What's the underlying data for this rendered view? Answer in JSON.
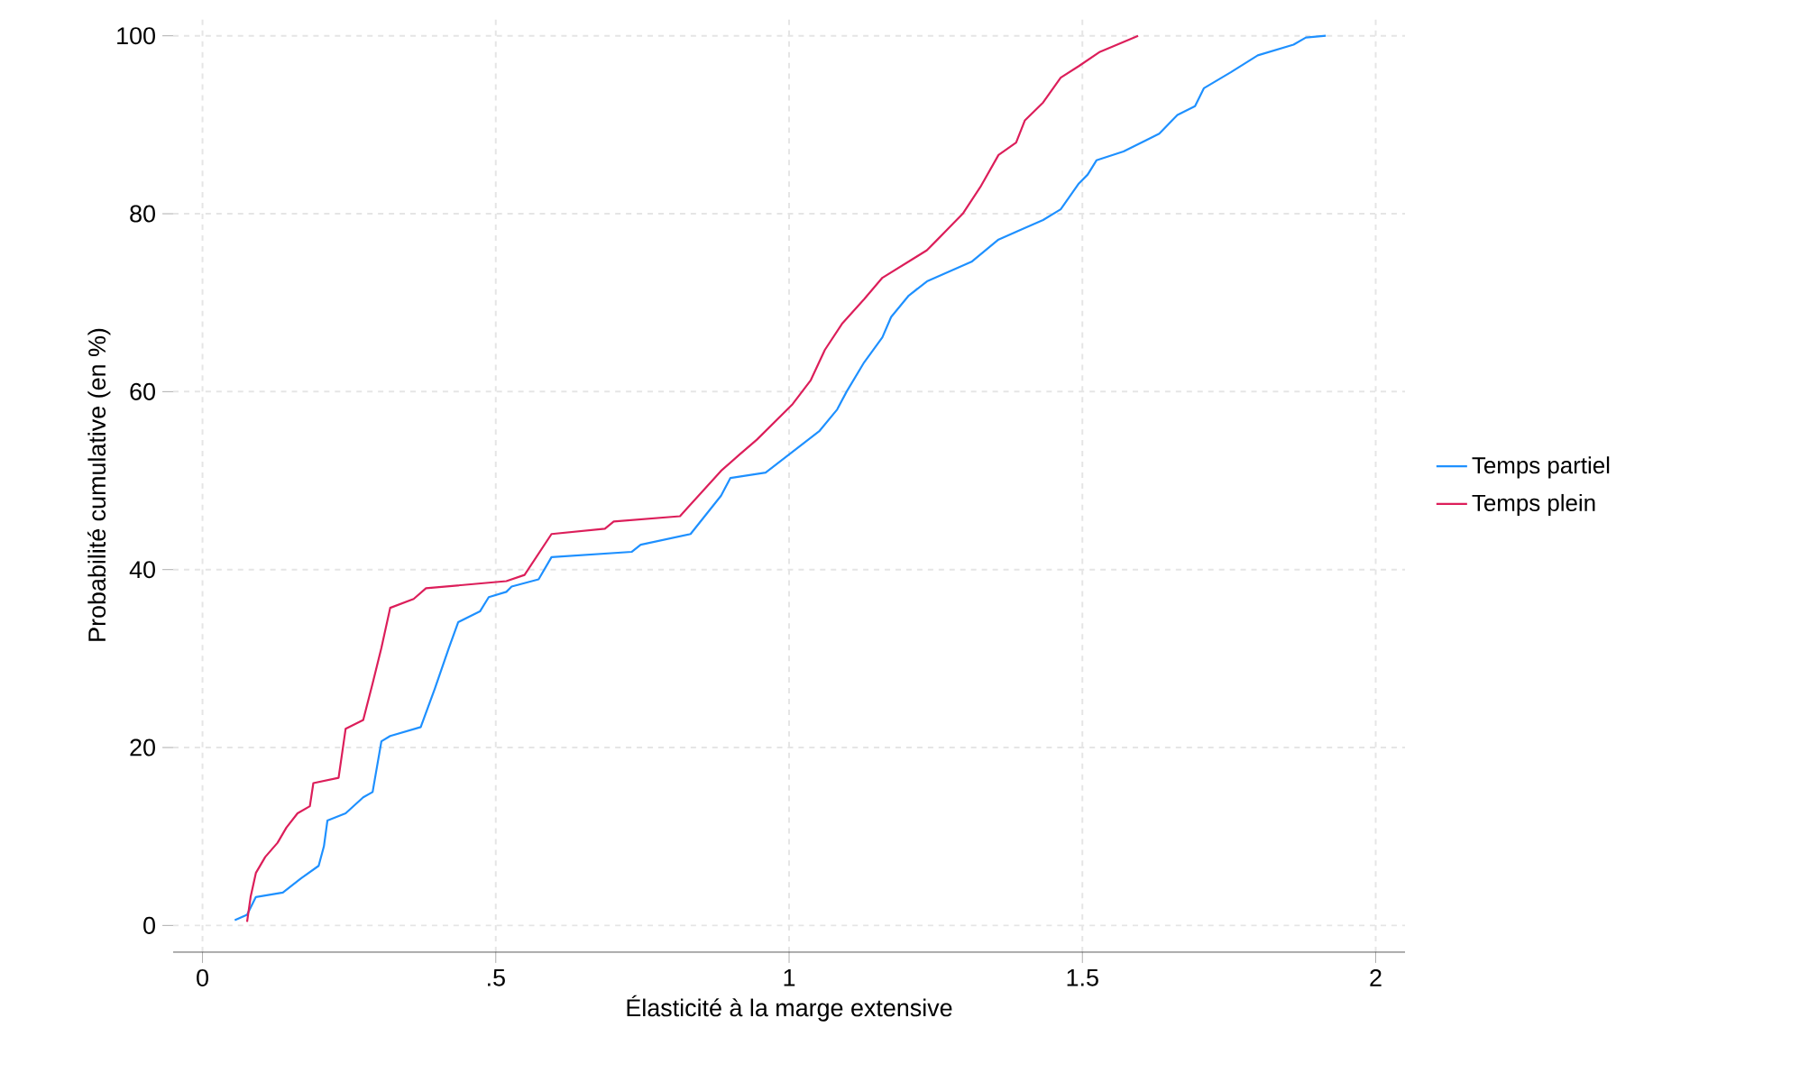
{
  "chart_data": {
    "type": "line",
    "xlabel": "Élasticité à la marge extensive",
    "ylabel": "Probabilité cumulative (en %)",
    "xlim": [
      -0.05,
      2.05
    ],
    "ylim": [
      -3,
      102
    ],
    "xticks": [
      0,
      {
        "value": 0.5,
        "label": ".5"
      },
      1,
      {
        "value": 1.5,
        "label": "1.5"
      },
      2
    ],
    "yticks": [
      0,
      20,
      40,
      60,
      80,
      100
    ],
    "grid": true,
    "legend": "right",
    "line_style": "solid",
    "marker": "none",
    "series": [
      {
        "name": "Temps partiel",
        "color": "#1e90ff",
        "x": [
          0.055,
          0.076,
          0.091,
          0.137,
          0.168,
          0.198,
          0.207,
          0.213,
          0.244,
          0.274,
          0.29,
          0.305,
          0.32,
          0.372,
          0.396,
          0.42,
          0.436,
          0.473,
          0.488,
          0.518,
          0.527,
          0.573,
          0.595,
          0.732,
          0.747,
          0.832,
          0.884,
          0.9,
          0.96,
          1.052,
          1.082,
          1.098,
          1.128,
          1.159,
          1.174,
          1.204,
          1.235,
          1.311,
          1.357,
          1.433,
          1.463,
          1.494,
          1.509,
          1.524,
          1.57,
          1.631,
          1.662,
          1.692,
          1.707,
          1.753,
          1.799,
          1.86,
          1.881,
          1.915
        ],
        "values": [
          0.6,
          1.2,
          3.2,
          3.7,
          5.3,
          6.7,
          8.9,
          11.8,
          12.6,
          14.4,
          15,
          20.7,
          21.3,
          22.3,
          26.6,
          31.2,
          34.1,
          35.3,
          36.9,
          37.5,
          38.1,
          38.9,
          41.4,
          42,
          42.8,
          44,
          48.3,
          50.3,
          50.9,
          55.6,
          58,
          60,
          63.3,
          66.1,
          68.4,
          70.8,
          72.4,
          74.6,
          77.1,
          79.3,
          80.5,
          83.4,
          84.4,
          86,
          87,
          89,
          91.1,
          92.1,
          94.1,
          95.9,
          97.8,
          99,
          99.8,
          100
        ]
      },
      {
        "name": "Temps plein",
        "color": "#dc1e5a",
        "x": [
          0.076,
          0.082,
          0.091,
          0.107,
          0.128,
          0.143,
          0.162,
          0.183,
          0.189,
          0.232,
          0.244,
          0.274,
          0.29,
          0.305,
          0.32,
          0.36,
          0.381,
          0.518,
          0.549,
          0.595,
          0.686,
          0.701,
          0.814,
          0.884,
          0.915,
          0.945,
          1.006,
          1.037,
          1.061,
          1.091,
          1.128,
          1.159,
          1.235,
          1.25,
          1.296,
          1.326,
          1.357,
          1.387,
          1.402,
          1.433,
          1.463,
          1.494,
          1.53,
          1.595
        ],
        "values": [
          0.4,
          3.2,
          5.9,
          7.7,
          9.3,
          11,
          12.6,
          13.4,
          16,
          16.6,
          22.1,
          23.1,
          27.2,
          31.2,
          35.7,
          36.7,
          37.9,
          38.7,
          39.4,
          44,
          44.6,
          45.4,
          46,
          51.1,
          52.9,
          54.6,
          58.6,
          61.3,
          64.7,
          67.7,
          70.4,
          72.8,
          75.9,
          76.9,
          80,
          83,
          86.6,
          88,
          90.5,
          92.5,
          95.3,
          96.6,
          98.2,
          100
        ]
      }
    ]
  }
}
